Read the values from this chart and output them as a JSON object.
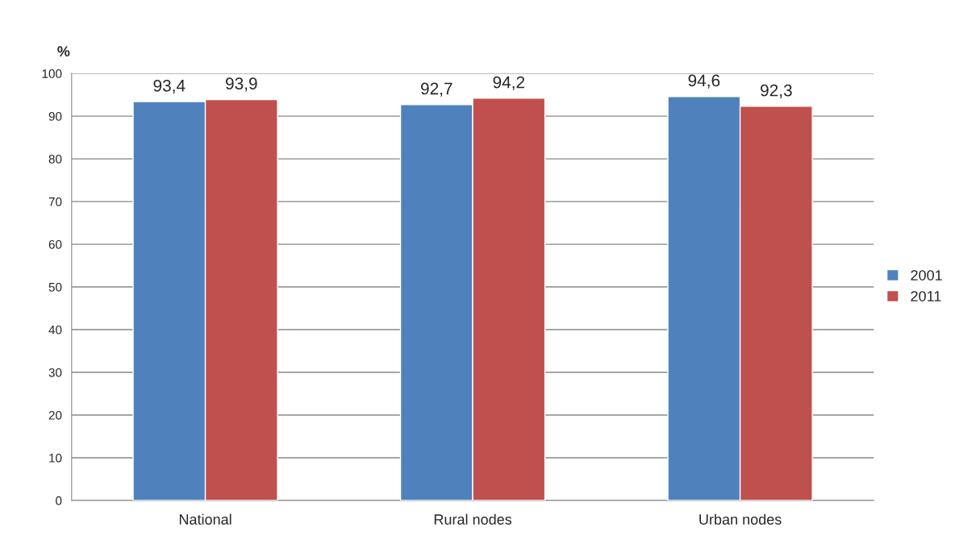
{
  "chart_data": {
    "type": "bar",
    "ylabel": "%",
    "categories": [
      "National",
      "Rural nodes",
      "Urban nodes"
    ],
    "series": [
      {
        "name": "2001",
        "color": "#4f81bd",
        "values": [
          93.4,
          92.7,
          94.6
        ],
        "value_labels": [
          "93,4",
          "92,7",
          "94,6"
        ]
      },
      {
        "name": "2011",
        "color": "#c0504d",
        "values": [
          93.9,
          94.2,
          92.3
        ],
        "value_labels": [
          "93,9",
          "94,2",
          "92,3"
        ]
      }
    ],
    "ylim": [
      0,
      100
    ],
    "yticks": [
      0,
      10,
      20,
      30,
      40,
      50,
      60,
      70,
      80,
      90,
      100
    ],
    "grid": "y",
    "legend": "right"
  }
}
